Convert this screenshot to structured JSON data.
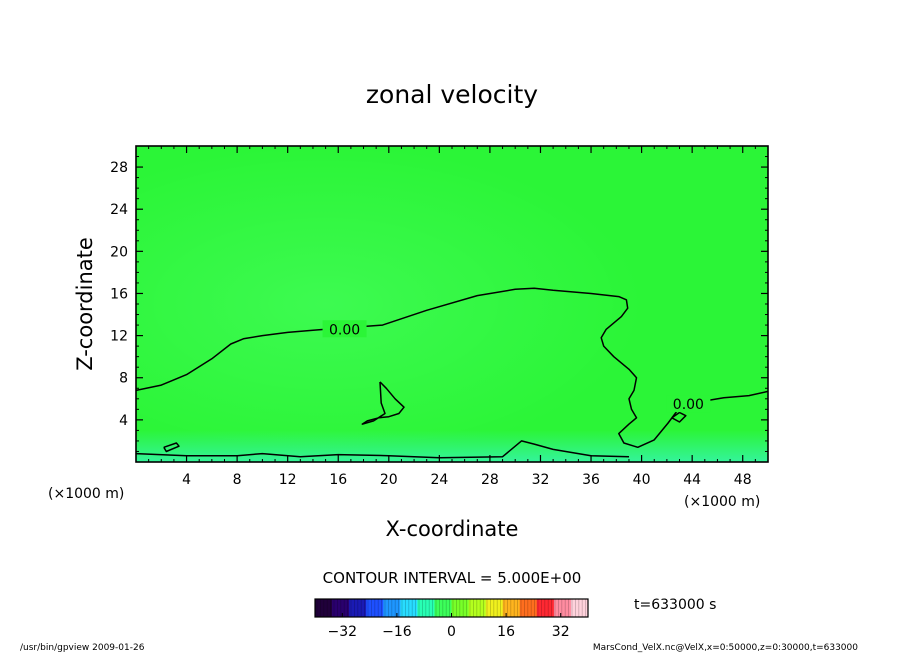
{
  "chart_data": {
    "type": "heatmap",
    "title": "zonal velocity",
    "xlabel": "X-coordinate",
    "ylabel": "Z-coordinate",
    "x_unit_note": "(×1000 m)",
    "y_unit_note": "(×1000 m)",
    "xlim": [
      0,
      50
    ],
    "ylim": [
      0,
      30
    ],
    "x_ticks": [
      4,
      8,
      12,
      16,
      20,
      24,
      28,
      32,
      36,
      40,
      44,
      48
    ],
    "y_ticks": [
      4,
      8,
      12,
      16,
      20,
      24,
      28
    ],
    "contour_interval_label": "CONTOUR INTERVAL = 5.000E+00",
    "time_label": "t=633000 s",
    "colorbar": {
      "min": -40,
      "max": 40,
      "tick_values": [
        -32,
        -16,
        0,
        16,
        32
      ],
      "colors": [
        "#20003a",
        "#2a006e",
        "#1a1ab4",
        "#1e50ff",
        "#1e96ff",
        "#28dcff",
        "#28ffb4",
        "#3cff5a",
        "#78ff28",
        "#b4ff1e",
        "#f0f01e",
        "#ffb41e",
        "#ff6e1e",
        "#ff2832",
        "#ff8ca0",
        "#ffd2dc"
      ]
    },
    "background_color": "#2bf537",
    "contours": [
      {
        "level_label": "0.00",
        "points": [
          [
            0,
            6.8
          ],
          [
            2,
            7.3
          ],
          [
            4,
            8.3
          ],
          [
            6,
            9.8
          ],
          [
            7.5,
            11.2
          ],
          [
            8.5,
            11.7
          ],
          [
            10,
            12
          ],
          [
            12,
            12.3
          ],
          [
            14,
            12.5
          ],
          [
            15,
            12.6
          ],
          [
            19.5,
            13
          ],
          [
            23,
            14.4
          ],
          [
            27,
            15.8
          ],
          [
            30,
            16.4
          ],
          [
            31.5,
            16.5
          ],
          [
            33,
            16.3
          ],
          [
            36,
            16
          ],
          [
            38.2,
            15.7
          ],
          [
            38.8,
            15.4
          ],
          [
            38.9,
            14.6
          ],
          [
            38.4,
            13.8
          ],
          [
            37.2,
            12.6
          ],
          [
            36.8,
            11.8
          ],
          [
            37,
            11
          ],
          [
            37.8,
            10
          ],
          [
            39,
            8.8
          ],
          [
            39.6,
            8
          ],
          [
            39.4,
            6.8
          ],
          [
            39,
            6
          ],
          [
            39.2,
            5
          ],
          [
            39.6,
            4.2
          ],
          [
            39,
            3.6
          ],
          [
            38.2,
            2.7
          ],
          [
            38.6,
            1.8
          ],
          [
            39.7,
            1.4
          ],
          [
            41,
            2.1
          ],
          [
            42.1,
            3.7
          ],
          [
            42.9,
            5
          ],
          [
            44.5,
            5.7
          ],
          [
            46.5,
            6.1
          ],
          [
            48.5,
            6.3
          ],
          [
            50,
            6.7
          ]
        ]
      },
      {
        "level_label": "",
        "points": [
          [
            19.3,
            7.6
          ],
          [
            19.8,
            7
          ],
          [
            20.5,
            6
          ],
          [
            21.2,
            5.2
          ],
          [
            20.8,
            4.6
          ],
          [
            20,
            4.3
          ],
          [
            19.2,
            4.2
          ],
          [
            18.3,
            3.9
          ],
          [
            17.9,
            3.6
          ],
          [
            18.8,
            3.9
          ],
          [
            19.7,
            4.6
          ],
          [
            19.4,
            5.6
          ],
          [
            19.3,
            7.6
          ]
        ]
      },
      {
        "level_label": "",
        "points": [
          [
            0,
            0.8
          ],
          [
            4,
            0.6
          ],
          [
            8,
            0.6
          ],
          [
            10,
            0.8
          ],
          [
            13,
            0.5
          ],
          [
            16,
            0.7
          ],
          [
            20,
            0.6
          ],
          [
            24,
            0.4
          ],
          [
            29,
            0.5
          ],
          [
            30.5,
            2
          ],
          [
            31.5,
            1.7
          ],
          [
            33,
            1.2
          ],
          [
            36,
            0.6
          ],
          [
            39,
            0.5
          ]
        ]
      },
      {
        "level_label": "",
        "points": [
          [
            2.2,
            1.4
          ],
          [
            3.2,
            1.8
          ],
          [
            3.4,
            1.5
          ],
          [
            2.4,
            1.0
          ],
          [
            2.2,
            1.4
          ]
        ]
      },
      {
        "level_label": "",
        "points": [
          [
            42.4,
            4.2
          ],
          [
            43.0,
            4.7
          ],
          [
            43.5,
            4.4
          ],
          [
            43.0,
            3.8
          ],
          [
            42.4,
            4.2
          ]
        ]
      }
    ]
  },
  "footer": {
    "left": "/usr/bin/gpview   2009-01-26",
    "right": "MarsCond_VelX.nc@VelX,x=0:50000,z=0:30000,t=633000"
  }
}
